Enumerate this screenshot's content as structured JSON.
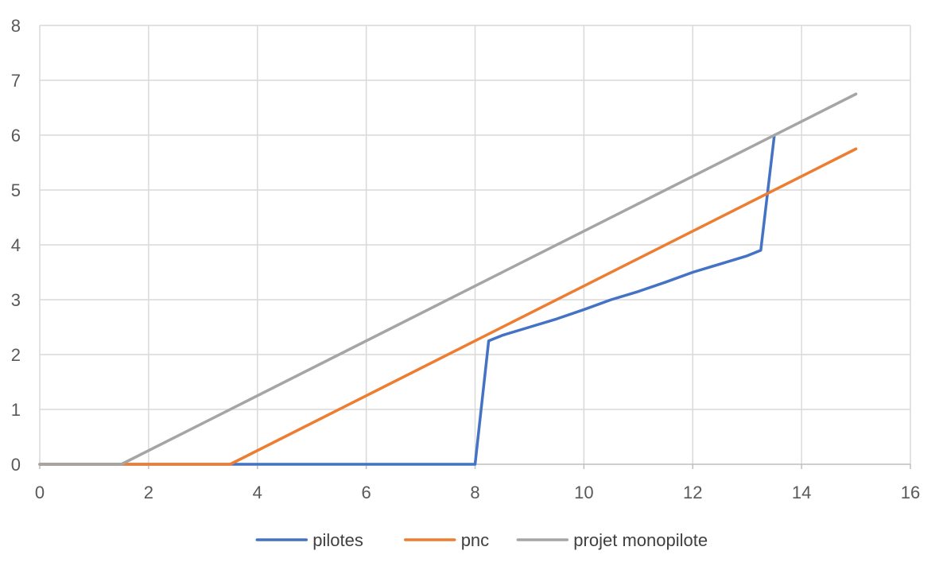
{
  "chart_data": {
    "type": "line",
    "title": "",
    "xlabel": "",
    "ylabel": "",
    "xlim": [
      0,
      16
    ],
    "ylim": [
      0,
      8
    ],
    "x_ticks": [
      0,
      2,
      4,
      6,
      8,
      10,
      12,
      14,
      16
    ],
    "y_ticks": [
      0,
      1,
      2,
      3,
      4,
      5,
      6,
      7,
      8
    ],
    "grid": true,
    "legend_position": "bottom",
    "series": [
      {
        "name": "pilotes",
        "color": "#4472C4",
        "points": [
          [
            0,
            0
          ],
          [
            8.0,
            0
          ],
          [
            8.25,
            2.25
          ],
          [
            8.5,
            2.35
          ],
          [
            9.0,
            2.5
          ],
          [
            9.5,
            2.65
          ],
          [
            10.0,
            2.82
          ],
          [
            10.5,
            3.0
          ],
          [
            11.0,
            3.15
          ],
          [
            11.5,
            3.32
          ],
          [
            12.0,
            3.5
          ],
          [
            12.5,
            3.65
          ],
          [
            13.0,
            3.8
          ],
          [
            13.25,
            3.9
          ],
          [
            13.5,
            6.0
          ]
        ]
      },
      {
        "name": "pnc",
        "color": "#ED7D31",
        "points": [
          [
            0,
            0
          ],
          [
            3.5,
            0
          ],
          [
            15.0,
            5.75
          ]
        ]
      },
      {
        "name": "projet monopilote",
        "color": "#A5A5A5",
        "points": [
          [
            0,
            0
          ],
          [
            1.5,
            0
          ],
          [
            15.0,
            6.75
          ]
        ]
      }
    ]
  }
}
